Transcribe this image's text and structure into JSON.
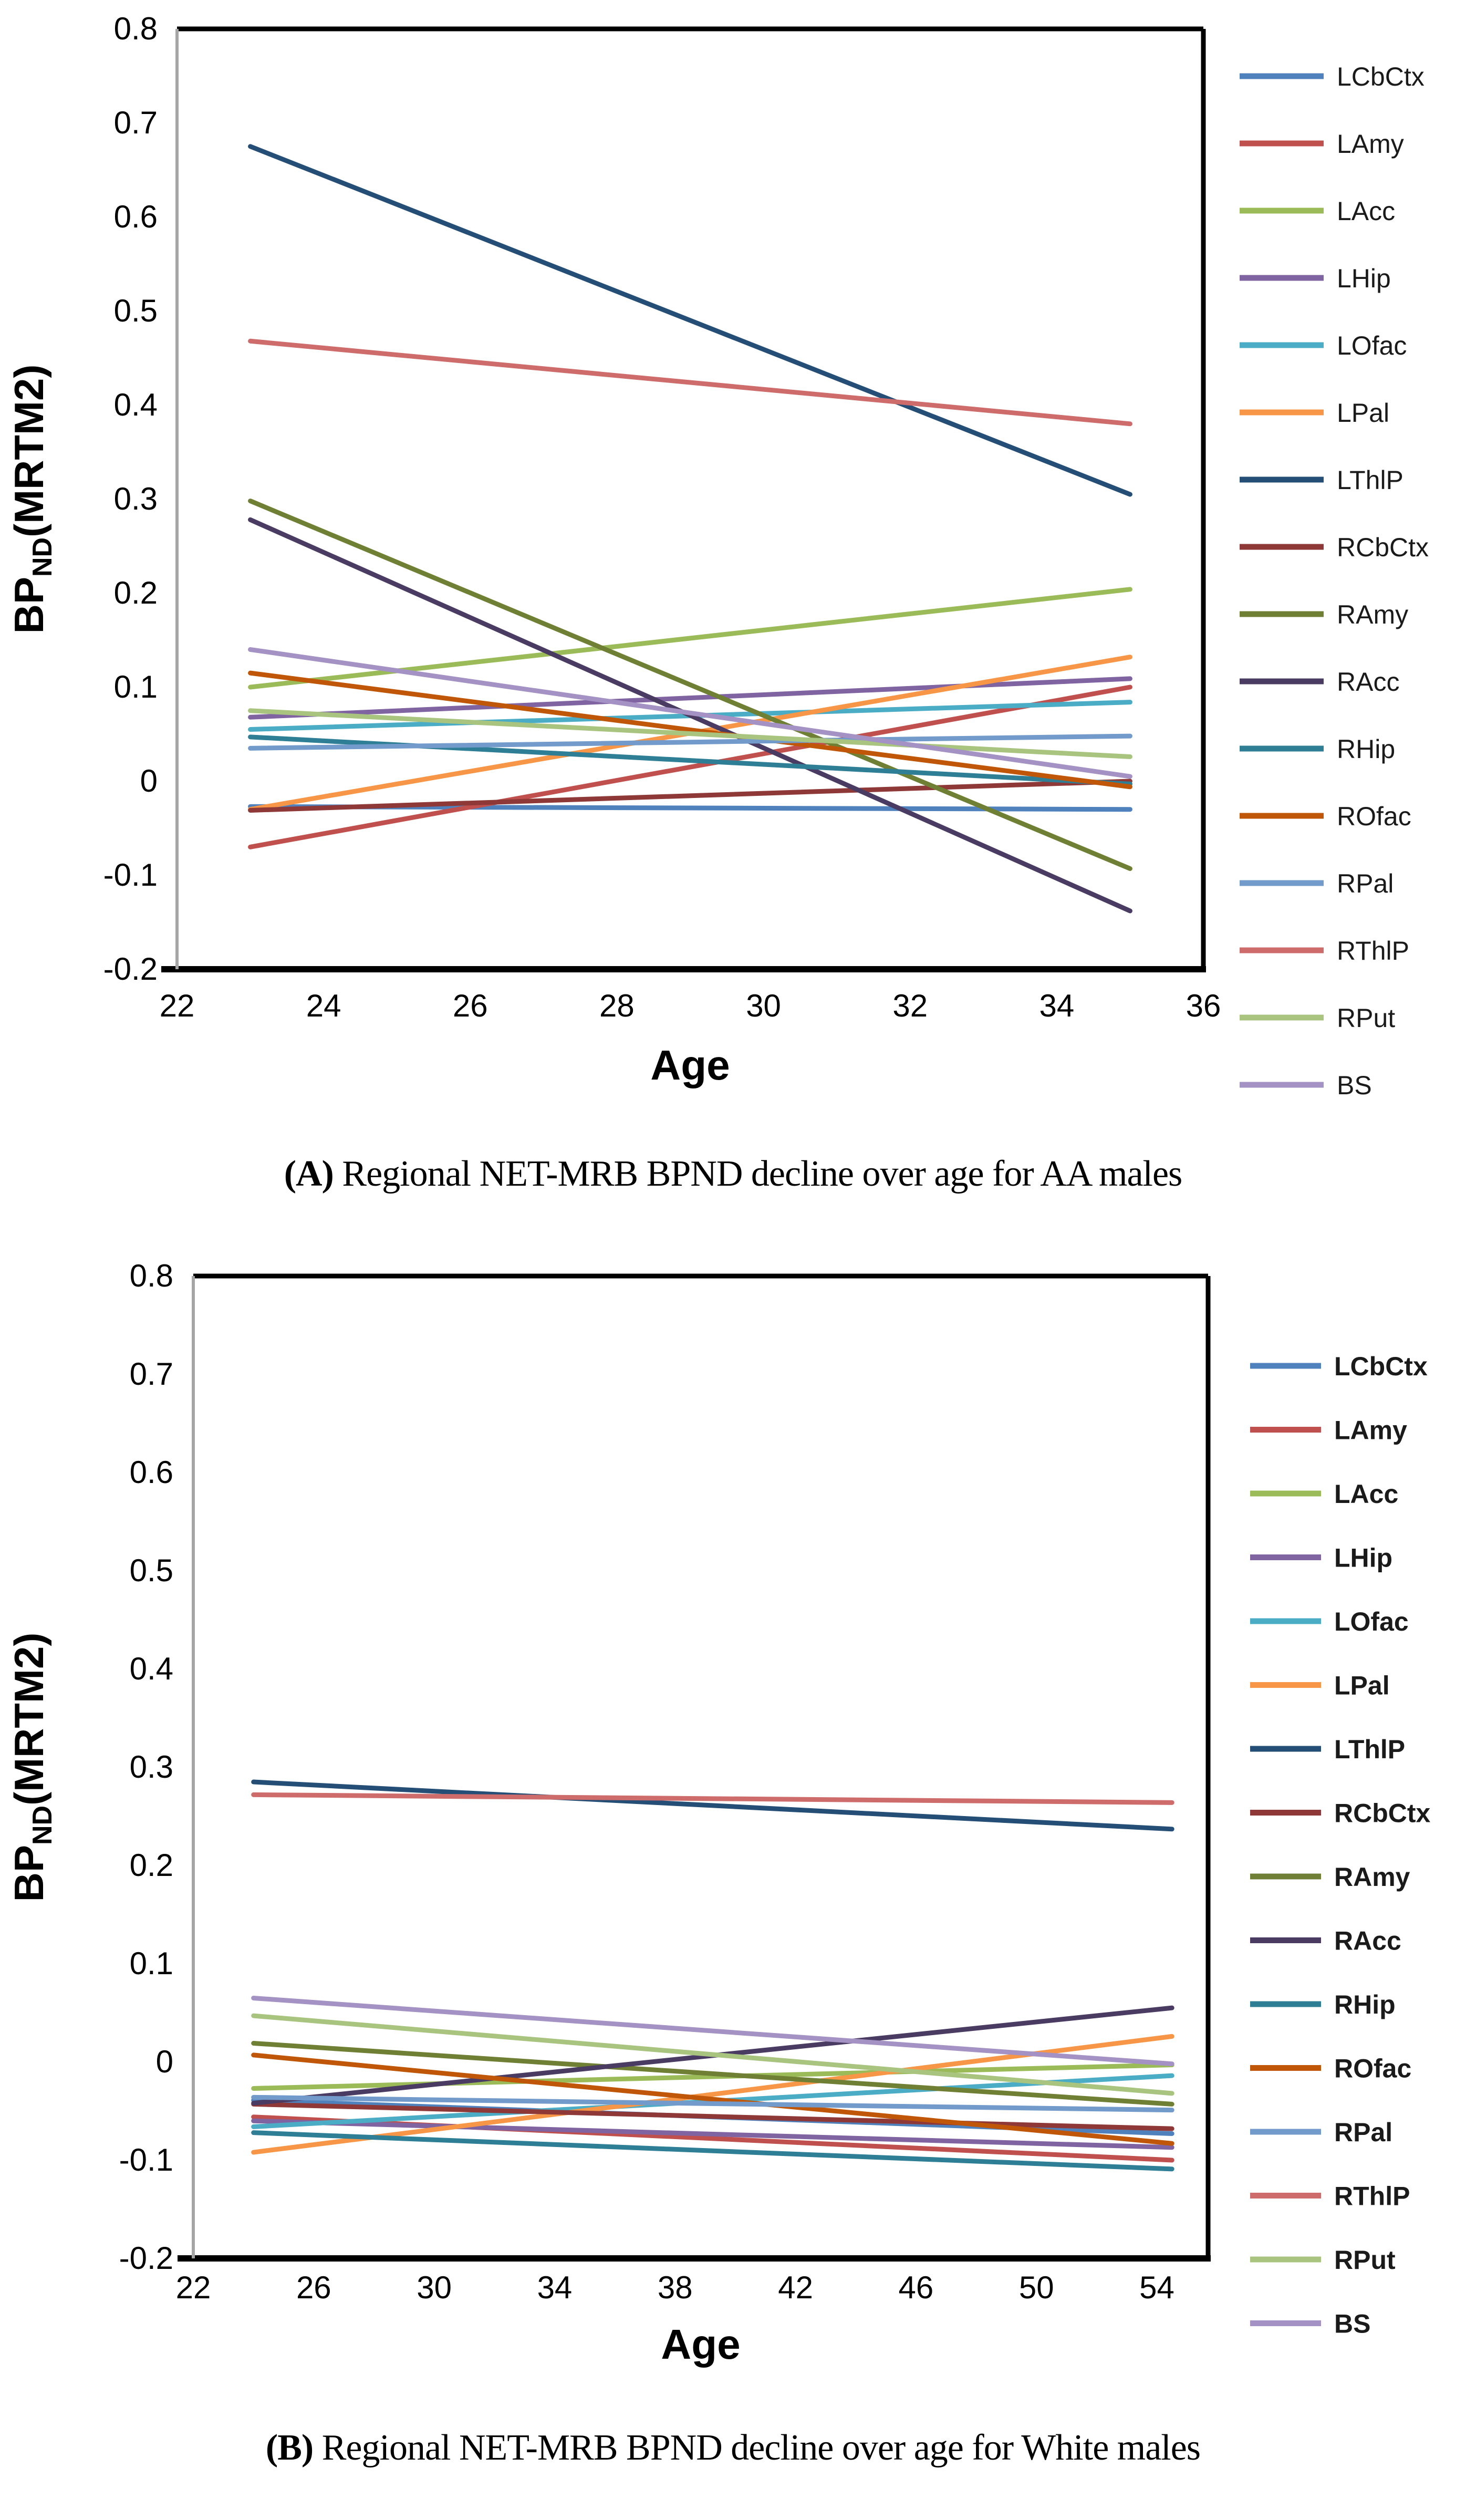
{
  "figure": {
    "background": "#ffffff",
    "caption_a_label": "(A)",
    "caption_a_text": " Regional NET-MRB BPND decline over age for AA males",
    "caption_b_label": "(B)",
    "caption_b_text": " Regional NET-MRB BPND decline over age for White males"
  },
  "chart_data": [
    {
      "id": "A",
      "type": "line",
      "title": "",
      "xlabel": "Age",
      "ylabel_main": "BP",
      "ylabel_sub": "ND",
      "ylabel_paren": "(MRTM2)",
      "xlim": [
        22,
        36
      ],
      "ylim": [
        -0.2,
        0.8
      ],
      "xticks": [
        22,
        24,
        26,
        28,
        30,
        32,
        34,
        36
      ],
      "ytick_labels": [
        "0.8",
        "0.7",
        "0.6",
        "0.5",
        "0.4",
        "0.3",
        "0.2",
        "0.1",
        "0",
        "-0.1",
        "-0.2"
      ],
      "yticks": [
        0.8,
        0.7,
        0.6,
        0.5,
        0.4,
        0.3,
        0.2,
        0.1,
        0,
        -0.1,
        -0.2
      ],
      "grid": false,
      "legend_position": "right",
      "legend_bold": false,
      "x": [
        23,
        35
      ],
      "series": [
        {
          "name": "LCbCtx",
          "color": "#4F81BD",
          "values": [
            -0.027,
            -0.03
          ]
        },
        {
          "name": "LAmy",
          "color": "#C0504D",
          "values": [
            -0.07,
            0.1
          ]
        },
        {
          "name": "LAcc",
          "color": "#9BBB59",
          "values": [
            0.1,
            0.204
          ]
        },
        {
          "name": "LHip",
          "color": "#8064A2",
          "values": [
            0.068,
            0.109
          ]
        },
        {
          "name": "LOfac",
          "color": "#4BACC6",
          "values": [
            0.055,
            0.084
          ]
        },
        {
          "name": "LPal",
          "color": "#F79646",
          "values": [
            -0.03,
            0.132
          ]
        },
        {
          "name": "LThlP",
          "color": "#254E77",
          "values": [
            0.675,
            0.305
          ]
        },
        {
          "name": "RCbCtx",
          "color": "#8E3937",
          "values": [
            -0.031,
            0.0
          ]
        },
        {
          "name": "RAmy",
          "color": "#6F8034",
          "values": [
            0.298,
            -0.093
          ]
        },
        {
          "name": "RAcc",
          "color": "#4A3B63",
          "values": [
            0.278,
            -0.138
          ]
        },
        {
          "name": "RHip",
          "color": "#2E7F96",
          "values": [
            0.047,
            -0.003
          ]
        },
        {
          "name": "ROfac",
          "color": "#C05708",
          "values": [
            0.115,
            -0.006
          ]
        },
        {
          "name": "RPal",
          "color": "#729ACA",
          "values": [
            0.035,
            0.048
          ]
        },
        {
          "name": "RThlP",
          "color": "#CE6C6B",
          "values": [
            0.468,
            0.38
          ]
        },
        {
          "name": "RPut",
          "color": "#A9C47F",
          "values": [
            0.075,
            0.026
          ]
        },
        {
          "name": "BS",
          "color": "#A492C4",
          "values": [
            0.14,
            0.005
          ]
        }
      ]
    },
    {
      "id": "B",
      "type": "line",
      "title": "",
      "xlabel": "Age",
      "ylabel_main": "BP",
      "ylabel_sub": "ND",
      "ylabel_paren": "(MRTM2)",
      "xlim": [
        22,
        55.7
      ],
      "ylim": [
        -0.2,
        0.8
      ],
      "xticks": [
        22,
        26,
        30,
        34,
        38,
        42,
        46,
        50,
        54
      ],
      "ytick_labels": [
        "0.8",
        "0.7",
        "0.6",
        "0.5",
        "0.4",
        "0.3",
        "0.2",
        "0.1",
        "0",
        "-0.1",
        "-0.2"
      ],
      "yticks": [
        0.8,
        0.7,
        0.6,
        0.5,
        0.4,
        0.3,
        0.2,
        0.1,
        0,
        -0.1,
        -0.2
      ],
      "grid": false,
      "legend_position": "right",
      "legend_bold": true,
      "x": [
        24,
        54.5
      ],
      "series": [
        {
          "name": "LCbCtx",
          "color": "#4F81BD",
          "values": [
            -0.039,
            -0.073
          ]
        },
        {
          "name": "LAmy",
          "color": "#C0504D",
          "values": [
            -0.056,
            -0.1
          ]
        },
        {
          "name": "LAcc",
          "color": "#9BBB59",
          "values": [
            -0.027,
            -0.003
          ]
        },
        {
          "name": "LHip",
          "color": "#8064A2",
          "values": [
            -0.06,
            -0.087
          ]
        },
        {
          "name": "LOfac",
          "color": "#4BACC6",
          "values": [
            -0.066,
            -0.014
          ]
        },
        {
          "name": "LPal",
          "color": "#F79646",
          "values": [
            -0.092,
            0.026
          ]
        },
        {
          "name": "LThlP",
          "color": "#254E77",
          "values": [
            0.285,
            0.237
          ]
        },
        {
          "name": "RCbCtx",
          "color": "#8E3937",
          "values": [
            -0.043,
            -0.068
          ]
        },
        {
          "name": "RAmy",
          "color": "#6F8034",
          "values": [
            0.019,
            -0.043
          ]
        },
        {
          "name": "RAcc",
          "color": "#4A3B63",
          "values": [
            -0.042,
            0.055
          ]
        },
        {
          "name": "RHip",
          "color": "#2E7F96",
          "values": [
            -0.072,
            -0.109
          ]
        },
        {
          "name": "ROfac",
          "color": "#C05708",
          "values": [
            0.007,
            -0.083
          ]
        },
        {
          "name": "RPal",
          "color": "#729ACA",
          "values": [
            -0.036,
            -0.049
          ]
        },
        {
          "name": "RThlP",
          "color": "#CE6C6B",
          "values": [
            0.272,
            0.264
          ]
        },
        {
          "name": "RPut",
          "color": "#A9C47F",
          "values": [
            0.047,
            -0.032
          ]
        },
        {
          "name": "BS",
          "color": "#A492C4",
          "values": [
            0.065,
            -0.002
          ]
        }
      ]
    }
  ]
}
